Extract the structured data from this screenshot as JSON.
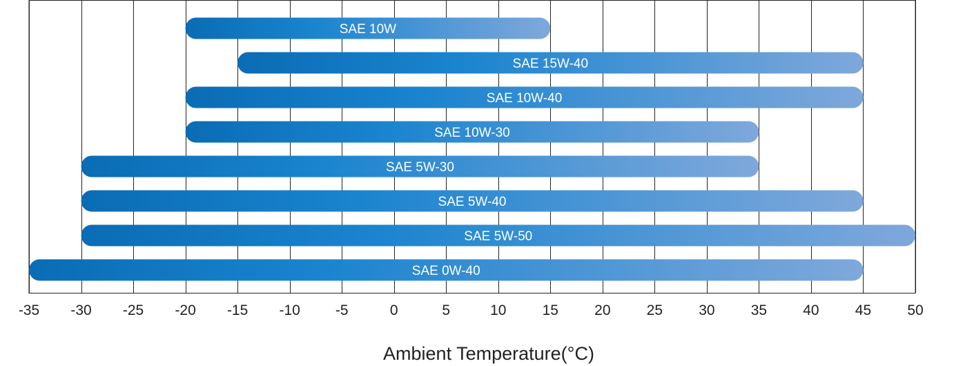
{
  "chart_data": {
    "type": "bar",
    "orientation": "horizontal-range",
    "title": "",
    "xlabel": "Ambient Temperature(°C)",
    "ylabel": "",
    "xlim": [
      -35,
      50
    ],
    "x_ticks": [
      -35,
      -30,
      -25,
      -20,
      -15,
      -10,
      -5,
      0,
      5,
      10,
      15,
      20,
      25,
      30,
      35,
      40,
      45,
      50
    ],
    "grid": "vertical",
    "colors": {
      "bar_start": "#0a6cb5",
      "bar_mid": "#1a84cf",
      "bar_end": "#7fa8db",
      "grid": "#222222",
      "text": "#222222",
      "bar_text": "#ffffff"
    },
    "series": [
      {
        "name": "SAE 10W",
        "min": -20,
        "max": 15
      },
      {
        "name": "SAE 15W-40",
        "min": -15,
        "max": 45
      },
      {
        "name": "SAE 10W-40",
        "min": -20,
        "max": 45
      },
      {
        "name": "SAE 10W-30",
        "min": -20,
        "max": 35
      },
      {
        "name": "SAE 5W-30",
        "min": -30,
        "max": 35
      },
      {
        "name": "SAE 5W-40",
        "min": -30,
        "max": 45
      },
      {
        "name": "SAE 5W-50",
        "min": -30,
        "max": 50
      },
      {
        "name": "SAE 0W-40",
        "min": -35,
        "max": 45
      }
    ]
  }
}
